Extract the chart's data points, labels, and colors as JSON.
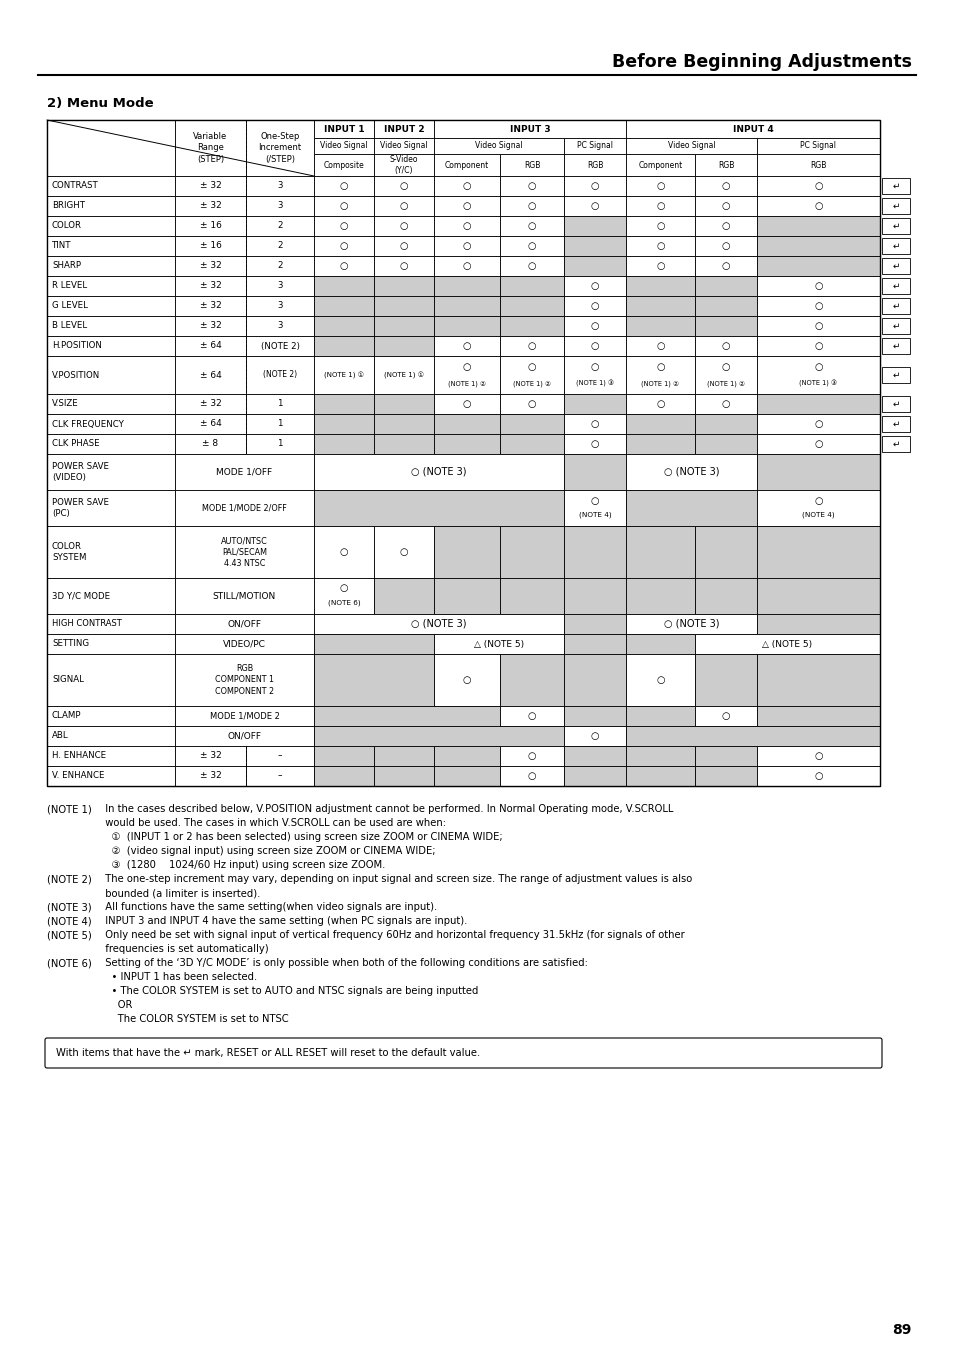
{
  "title": "Before Beginning Adjustments",
  "section": "2) Menu Mode",
  "page_number": "89",
  "bg_color": "#ffffff",
  "gray": "#cccccc",
  "notes_text": [
    [
      "(NOTE 1)",
      "  In the cases described below, V.POSITION adjustment cannot be performed. In Normal Operating mode, V.SCROLL"
    ],
    [
      "",
      "  would be used. The cases in which V.SCROLL can be used are when:"
    ],
    [
      "",
      "    ①  (INPUT 1 or 2 has been selected) using screen size ZOOM or CINEMA WIDE;"
    ],
    [
      "",
      "    ②  (video signal input) using screen size ZOOM or CINEMA WIDE;"
    ],
    [
      "",
      "    ③  (1280  1024/60 Hz input) using screen size ZOOM."
    ],
    [
      "(NOTE 2)",
      "  The one-step increment may vary, depending on input signal and screen size. The range of adjustment values is also"
    ],
    [
      "",
      "  bounded (a limiter is inserted)."
    ],
    [
      "(NOTE 3)",
      "  All functions have the same setting(when video signals are input)."
    ],
    [
      "(NOTE 4)",
      "  INPUT 3 and INPUT 4 have the same setting (when PC signals are input)."
    ],
    [
      "(NOTE 5)",
      "  Only need be set with signal input of vertical frequency 60Hz and horizontal frequency 31.5kHz (for signals of other"
    ],
    [
      "",
      "  frequencies is set automatically)"
    ],
    [
      "(NOTE 6)",
      "  Setting of the ‘3D Y/C MODE’ is only possible when both of the following conditions are satisfied:"
    ],
    [
      "",
      "    • INPUT 1 has been selected."
    ],
    [
      "",
      "    • The COLOR SYSTEM is set to AUTO and NTSC signals are being inputted"
    ],
    [
      "",
      "      OR"
    ],
    [
      "",
      "      The COLOR SYSTEM is set to NTSC"
    ]
  ],
  "bottom_note": "With items that have the ↵ mark, RESET or ALL RESET will reset to the default value."
}
